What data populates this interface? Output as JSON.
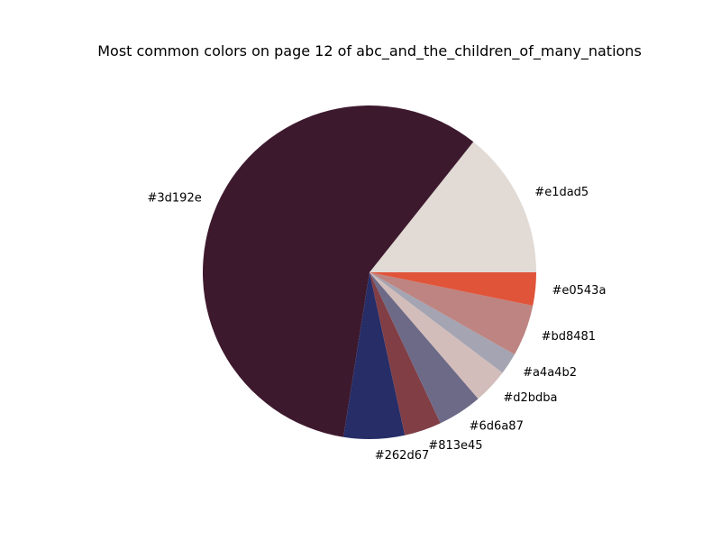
{
  "chart_data": {
    "type": "pie",
    "title": "Most common colors on page 12 of abc_and_the_children_of_many_nations",
    "start_angle": 0,
    "direction": "counterclockwise",
    "slices": [
      {
        "label": "#e1dad5",
        "value": 14.3,
        "color": "#e1dad5"
      },
      {
        "label": "#3d192e",
        "value": 58.2,
        "color": "#3d192e"
      },
      {
        "label": "#262d67",
        "value": 5.9,
        "color": "#262d67"
      },
      {
        "label": "#813e45",
        "value": 3.6,
        "color": "#813e45"
      },
      {
        "label": "#6d6a87",
        "value": 4.3,
        "color": "#6d6a87"
      },
      {
        "label": "#d2bdba",
        "value": 3.4,
        "color": "#d2bdba"
      },
      {
        "label": "#a4a4b2",
        "value": 2.1,
        "color": "#a4a4b2"
      },
      {
        "label": "#bd8481",
        "value": 5.0,
        "color": "#bd8481"
      },
      {
        "label": "#e0543a",
        "value": 3.2,
        "color": "#e0543a"
      }
    ]
  }
}
